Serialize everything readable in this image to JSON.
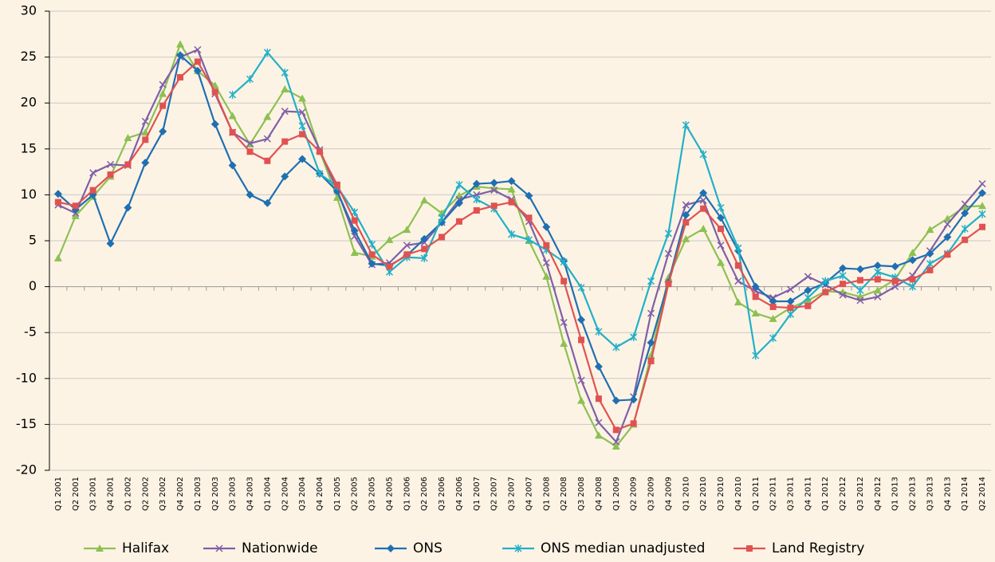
{
  "chart_data": {
    "type": "line",
    "categories": [
      "Q1 2001",
      "Q2 2001",
      "Q3 2001",
      "Q4 2001",
      "Q1 2002",
      "Q2 2002",
      "Q3 2002",
      "Q4 2002",
      "Q1 2003",
      "Q2 2003",
      "Q3 2003",
      "Q4 2003",
      "Q1 2004",
      "Q2 2004",
      "Q3 2004",
      "Q4 2004",
      "Q1 2005",
      "Q2 2005",
      "Q3 2005",
      "Q4 2005",
      "Q1 2006",
      "Q2 2006",
      "Q3 2006",
      "Q4 2006",
      "Q1 2007",
      "Q2 2007",
      "Q3 2007",
      "Q4 2007",
      "Q1 2008",
      "Q2 2008",
      "Q3 2008",
      "Q4 2008",
      "Q1 2009",
      "Q2 2009",
      "Q3 2009",
      "Q4 2009",
      "Q1 2010",
      "Q2 2010",
      "Q3 2010",
      "Q4 2010",
      "Q1 2011",
      "Q2 2011",
      "Q3 2011",
      "Q4 2011",
      "Q1 2012",
      "Q2 2012",
      "Q3 2012",
      "Q4 2012",
      "Q1 2013",
      "Q2 2013",
      "Q3 2013",
      "Q4 2013",
      "Q1 2014",
      "Q2 2014"
    ],
    "series": [
      {
        "name": "Halifax",
        "color": "#8cc152",
        "marker": "triangle",
        "values": [
          3.1,
          7.7,
          9.8,
          12,
          16.2,
          16.8,
          21,
          26.4,
          23.5,
          21.9,
          18.6,
          15.5,
          18.5,
          21.5,
          20.5,
          14.8,
          9.7,
          3.7,
          3.3,
          5.1,
          6.2,
          9.4,
          8,
          9.9,
          10.9,
          10.7,
          10.6,
          5,
          1.1,
          -6.2,
          -12.4,
          -16.2,
          -17.4,
          -15,
          -7.5,
          1,
          5.2,
          6.3,
          2.6,
          -1.7,
          -2.9,
          -3.5,
          -2.3,
          -1.5,
          -0.5,
          -0.6,
          -1.1,
          -0.4,
          0.8,
          3.7,
          6.2,
          7.4,
          8.7,
          8.8
        ]
      },
      {
        "name": "Nationwide",
        "color": "#7f5fa8",
        "marker": "x",
        "values": [
          8.9,
          8,
          12.4,
          13.3,
          13.2,
          18,
          22,
          25,
          25.8,
          21,
          16.8,
          15.6,
          16.1,
          19.1,
          19,
          14.9,
          10.5,
          5.5,
          2.4,
          2.6,
          4.5,
          4.8,
          7,
          9.5,
          10,
          10.5,
          9.5,
          7.1,
          2.6,
          -3.9,
          -10.2,
          -14.8,
          -16.9,
          -12,
          -2.9,
          3.6,
          8.9,
          9.4,
          4.5,
          0.6,
          -0.5,
          -1.2,
          -0.3,
          1.1,
          0.2,
          -0.9,
          -1.5,
          -1.1,
          0,
          1.2,
          3.9,
          6.8,
          9,
          11.2
        ]
      },
      {
        "name": "ONS",
        "color": "#1f6fb2",
        "marker": "diamond",
        "values": [
          10.1,
          8.4,
          10,
          4.7,
          8.6,
          13.5,
          16.9,
          25.2,
          23.5,
          17.7,
          13.2,
          10,
          9.1,
          12,
          13.9,
          12.3,
          10.4,
          6.1,
          2.5,
          2.3,
          3.4,
          5.2,
          7,
          9.1,
          11.2,
          11.3,
          11.5,
          9.9,
          6.5,
          2.8,
          -3.6,
          -8.7,
          -12.4,
          -12.3,
          -6.1,
          0.5,
          7.8,
          10.2,
          7.5,
          3.9,
          0,
          -1.6,
          -1.6,
          -0.4,
          0.4,
          2,
          1.9,
          2.3,
          2.2,
          2.9,
          3.6,
          5.4,
          8,
          10.2
        ]
      },
      {
        "name": "ONS median unadjusted",
        "color": "#22b0c8",
        "marker": "asterisk",
        "values": [
          null,
          null,
          null,
          null,
          null,
          null,
          null,
          null,
          null,
          null,
          20.9,
          22.6,
          25.5,
          23.3,
          17.5,
          12.3,
          10.9,
          8.1,
          4.6,
          1.6,
          3.2,
          3.1,
          7.5,
          11.1,
          9.5,
          8.5,
          5.7,
          5.1,
          4,
          2.7,
          -0.1,
          -4.9,
          -6.6,
          -5.5,
          0.6,
          5.8,
          17.6,
          14.4,
          8.6,
          4.2,
          -7.5,
          -5.6,
          -3,
          -1.2,
          0.6,
          1.2,
          -0.4,
          1.6,
          1,
          0,
          2.5,
          3.6,
          6.3,
          7.9
        ]
      },
      {
        "name": "Land Registry",
        "color": "#e05252",
        "marker": "square",
        "values": [
          9.2,
          8.8,
          10.5,
          12.2,
          13.3,
          16,
          19.7,
          22.8,
          24.5,
          21.2,
          16.8,
          14.7,
          13.7,
          15.8,
          16.6,
          14.7,
          11.1,
          7.2,
          3.5,
          2.2,
          3.5,
          4.1,
          5.4,
          7.1,
          8.3,
          8.8,
          9.2,
          7.5,
          4.5,
          0.6,
          -5.8,
          -12.2,
          -15.6,
          -14.9,
          -8.1,
          0.3,
          7,
          8.5,
          6.3,
          2.3,
          -1.1,
          -2.2,
          -2.3,
          -2.1,
          -0.6,
          0.3,
          0.7,
          0.8,
          0.6,
          0.8,
          1.8,
          3.5,
          5.1,
          6.5
        ]
      }
    ],
    "ylim": [
      -20,
      30
    ],
    "yticks": [
      -20,
      -15,
      -10,
      -5,
      0,
      5,
      10,
      15,
      20,
      25,
      30
    ],
    "grid": true,
    "legend": "bottom"
  }
}
